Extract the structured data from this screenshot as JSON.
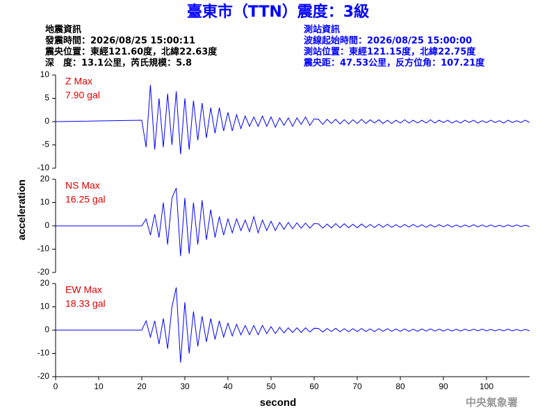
{
  "title": "臺東市（TTN）震度：3級",
  "header": {
    "left": [
      "地震資訊",
      "發震時間：2026/08/25 15:00:11",
      "震央位置：東經121.60度，北緯22.63度",
      "深　度：13.1公里，芮氏規模：5.8"
    ],
    "right": [
      "測站資訊",
      "波線起始時間：2026/08/25 15:00:00",
      "測站位置：東經121.15度，北緯22.75度",
      "震央距：47.53公里，反方位角：107.21度"
    ]
  },
  "ylabel": "acceleration",
  "xlabel": "second",
  "agency": "中央氣象署",
  "chart_data": [
    {
      "type": "line",
      "name": "Z Max",
      "annotation": "7.90 gal",
      "color": "#0000ff",
      "xlim": [
        0,
        110
      ],
      "ylim": [
        -10,
        10
      ],
      "yticks": [
        -10,
        -5,
        0,
        5,
        10
      ],
      "x": [
        0,
        20,
        21,
        22,
        23,
        24,
        25,
        26,
        27,
        28,
        29,
        30,
        31,
        32,
        33,
        34,
        35,
        36,
        37,
        38,
        39,
        40,
        41,
        42,
        43,
        44,
        45,
        46,
        47,
        48,
        49,
        50,
        51,
        52,
        53,
        54,
        55,
        56,
        57,
        58,
        59,
        60,
        61,
        62,
        63,
        64,
        65,
        66,
        67,
        68,
        69,
        70,
        71,
        72,
        73,
        74,
        75,
        76,
        77,
        78,
        79,
        80,
        81,
        82,
        83,
        84,
        85,
        86,
        87,
        88,
        89,
        90,
        91,
        92,
        93,
        94,
        95,
        96,
        97,
        98,
        99,
        100,
        101,
        102,
        103,
        104,
        105,
        106,
        107,
        108,
        109,
        110
      ],
      "values": [
        0,
        0.3,
        -5.5,
        7.9,
        -6,
        5,
        -5.5,
        6,
        -5,
        6.5,
        -7,
        5,
        -6,
        4.5,
        -4,
        4,
        -3.5,
        3,
        -2.5,
        3,
        -2,
        2,
        -2,
        1.5,
        -1.5,
        1.2,
        -1,
        1,
        -1,
        1.2,
        -1,
        1,
        -1.2,
        0.8,
        -0.8,
        0.8,
        -1,
        0.8,
        -0.6,
        1,
        -0.8,
        0.6,
        0.5,
        -0.6,
        0.5,
        -0.4,
        0.5,
        -0.5,
        0.4,
        -0.5,
        0.4,
        -0.4,
        0.5,
        -0.4,
        0.4,
        -0.3,
        0.4,
        -0.4,
        0.3,
        -0.4,
        0.3,
        -0.3,
        0.4,
        -0.3,
        0.3,
        -0.3,
        0.3,
        -0.3,
        0.4,
        -0.3,
        0.3,
        -0.2,
        0.3,
        -0.3,
        0.2,
        -0.3,
        0.3,
        -0.2,
        0.3,
        -0.3,
        0.2,
        -0.2,
        0.3,
        -0.2,
        0.2,
        -0.3,
        0.3,
        -0.2,
        0.2,
        -0.2,
        0.3,
        -0.2
      ]
    },
    {
      "type": "line",
      "name": "NS Max",
      "annotation": "16.25 gal",
      "color": "#0000ff",
      "xlim": [
        0,
        110
      ],
      "ylim": [
        -20,
        20
      ],
      "yticks": [
        -20,
        -10,
        0,
        10,
        20
      ],
      "x": [
        0,
        20,
        21,
        22,
        23,
        24,
        25,
        26,
        27,
        28,
        29,
        30,
        31,
        32,
        33,
        34,
        35,
        36,
        37,
        38,
        39,
        40,
        41,
        42,
        43,
        44,
        45,
        46,
        47,
        48,
        49,
        50,
        51,
        52,
        53,
        54,
        55,
        56,
        57,
        58,
        59,
        60,
        61,
        62,
        63,
        64,
        65,
        66,
        67,
        68,
        69,
        70,
        71,
        72,
        73,
        74,
        75,
        76,
        77,
        78,
        79,
        80,
        81,
        82,
        83,
        84,
        85,
        86,
        87,
        88,
        89,
        90,
        91,
        92,
        93,
        94,
        95,
        96,
        97,
        98,
        99,
        100,
        101,
        102,
        103,
        104,
        105,
        106,
        107,
        108,
        109,
        110
      ],
      "values": [
        0,
        0,
        3,
        -4,
        5,
        -5,
        10,
        -8,
        12,
        16.25,
        -13,
        12,
        -12,
        10,
        -8,
        11,
        -6,
        7,
        -5,
        4,
        -4,
        3,
        -3,
        3,
        -2,
        2.5,
        -2.5,
        4,
        -3,
        2.5,
        -2,
        2,
        -2,
        1.5,
        -1.5,
        1.5,
        -1.2,
        1.3,
        -1,
        1.2,
        -1,
        1,
        0.9,
        -1,
        0.8,
        -0.9,
        1,
        -0.8,
        0.9,
        -0.8,
        0.7,
        -0.8,
        0.8,
        -0.7,
        0.6,
        -0.7,
        0.7,
        -0.6,
        0.7,
        -0.6,
        0.5,
        -0.6,
        0.6,
        -0.5,
        0.6,
        -0.5,
        0.5,
        -0.6,
        0.5,
        -0.5,
        0.5,
        -0.4,
        0.5,
        -0.5,
        0.4,
        -0.5,
        0.4,
        -0.4,
        0.5,
        -0.4,
        0.4,
        -0.4,
        0.4,
        -0.4,
        0.3,
        -0.4,
        0.4,
        -0.3,
        0.4,
        -0.3,
        0.3,
        -0.3
      ]
    },
    {
      "type": "line",
      "name": "EW Max",
      "annotation": "18.33 gal",
      "color": "#0000ff",
      "xlim": [
        0,
        110
      ],
      "xticks": [
        0,
        10,
        20,
        30,
        40,
        50,
        60,
        70,
        80,
        90,
        100
      ],
      "ylim": [
        -20,
        20
      ],
      "yticks": [
        -20,
        -10,
        0,
        10,
        20
      ],
      "x": [
        0,
        20,
        21,
        22,
        23,
        24,
        25,
        26,
        27,
        28,
        29,
        30,
        31,
        32,
        33,
        34,
        35,
        36,
        37,
        38,
        39,
        40,
        41,
        42,
        43,
        44,
        45,
        46,
        47,
        48,
        49,
        50,
        51,
        52,
        53,
        54,
        55,
        56,
        57,
        58,
        59,
        60,
        61,
        62,
        63,
        64,
        65,
        66,
        67,
        68,
        69,
        70,
        71,
        72,
        73,
        74,
        75,
        76,
        77,
        78,
        79,
        80,
        81,
        82,
        83,
        84,
        85,
        86,
        87,
        88,
        89,
        90,
        91,
        92,
        93,
        94,
        95,
        96,
        97,
        98,
        99,
        100,
        101,
        102,
        103,
        104,
        105,
        106,
        107,
        108,
        109,
        110
      ],
      "values": [
        0,
        0,
        4,
        -3,
        4,
        -6,
        5,
        -8,
        10,
        18.33,
        -14,
        12,
        -10,
        8,
        -7,
        6,
        -5,
        5,
        -4,
        4,
        -3,
        3,
        -2.5,
        2.5,
        -2,
        2,
        -2,
        2,
        -2,
        2,
        -1.5,
        1.5,
        -1.5,
        1.2,
        -1.2,
        1,
        -1,
        1,
        -1,
        1,
        -0.8,
        0.8,
        0.7,
        -0.8,
        0.7,
        -0.6,
        0.8,
        -0.7,
        0.6,
        -0.7,
        0.6,
        -0.6,
        0.7,
        -0.6,
        0.5,
        -0.6,
        0.6,
        -0.5,
        0.6,
        -0.5,
        0.5,
        -0.5,
        0.5,
        -0.5,
        0.4,
        -0.5,
        0.5,
        -0.4,
        0.5,
        -0.4,
        0.4,
        -0.4,
        0.4,
        -0.4,
        0.4,
        -0.4,
        0.4,
        -0.3,
        0.4,
        -0.3,
        0.4,
        -0.3,
        0.3,
        -0.3,
        0.3,
        -0.3,
        0.4,
        -0.3,
        0.3,
        -0.3,
        0.3,
        -0.3
      ]
    }
  ]
}
